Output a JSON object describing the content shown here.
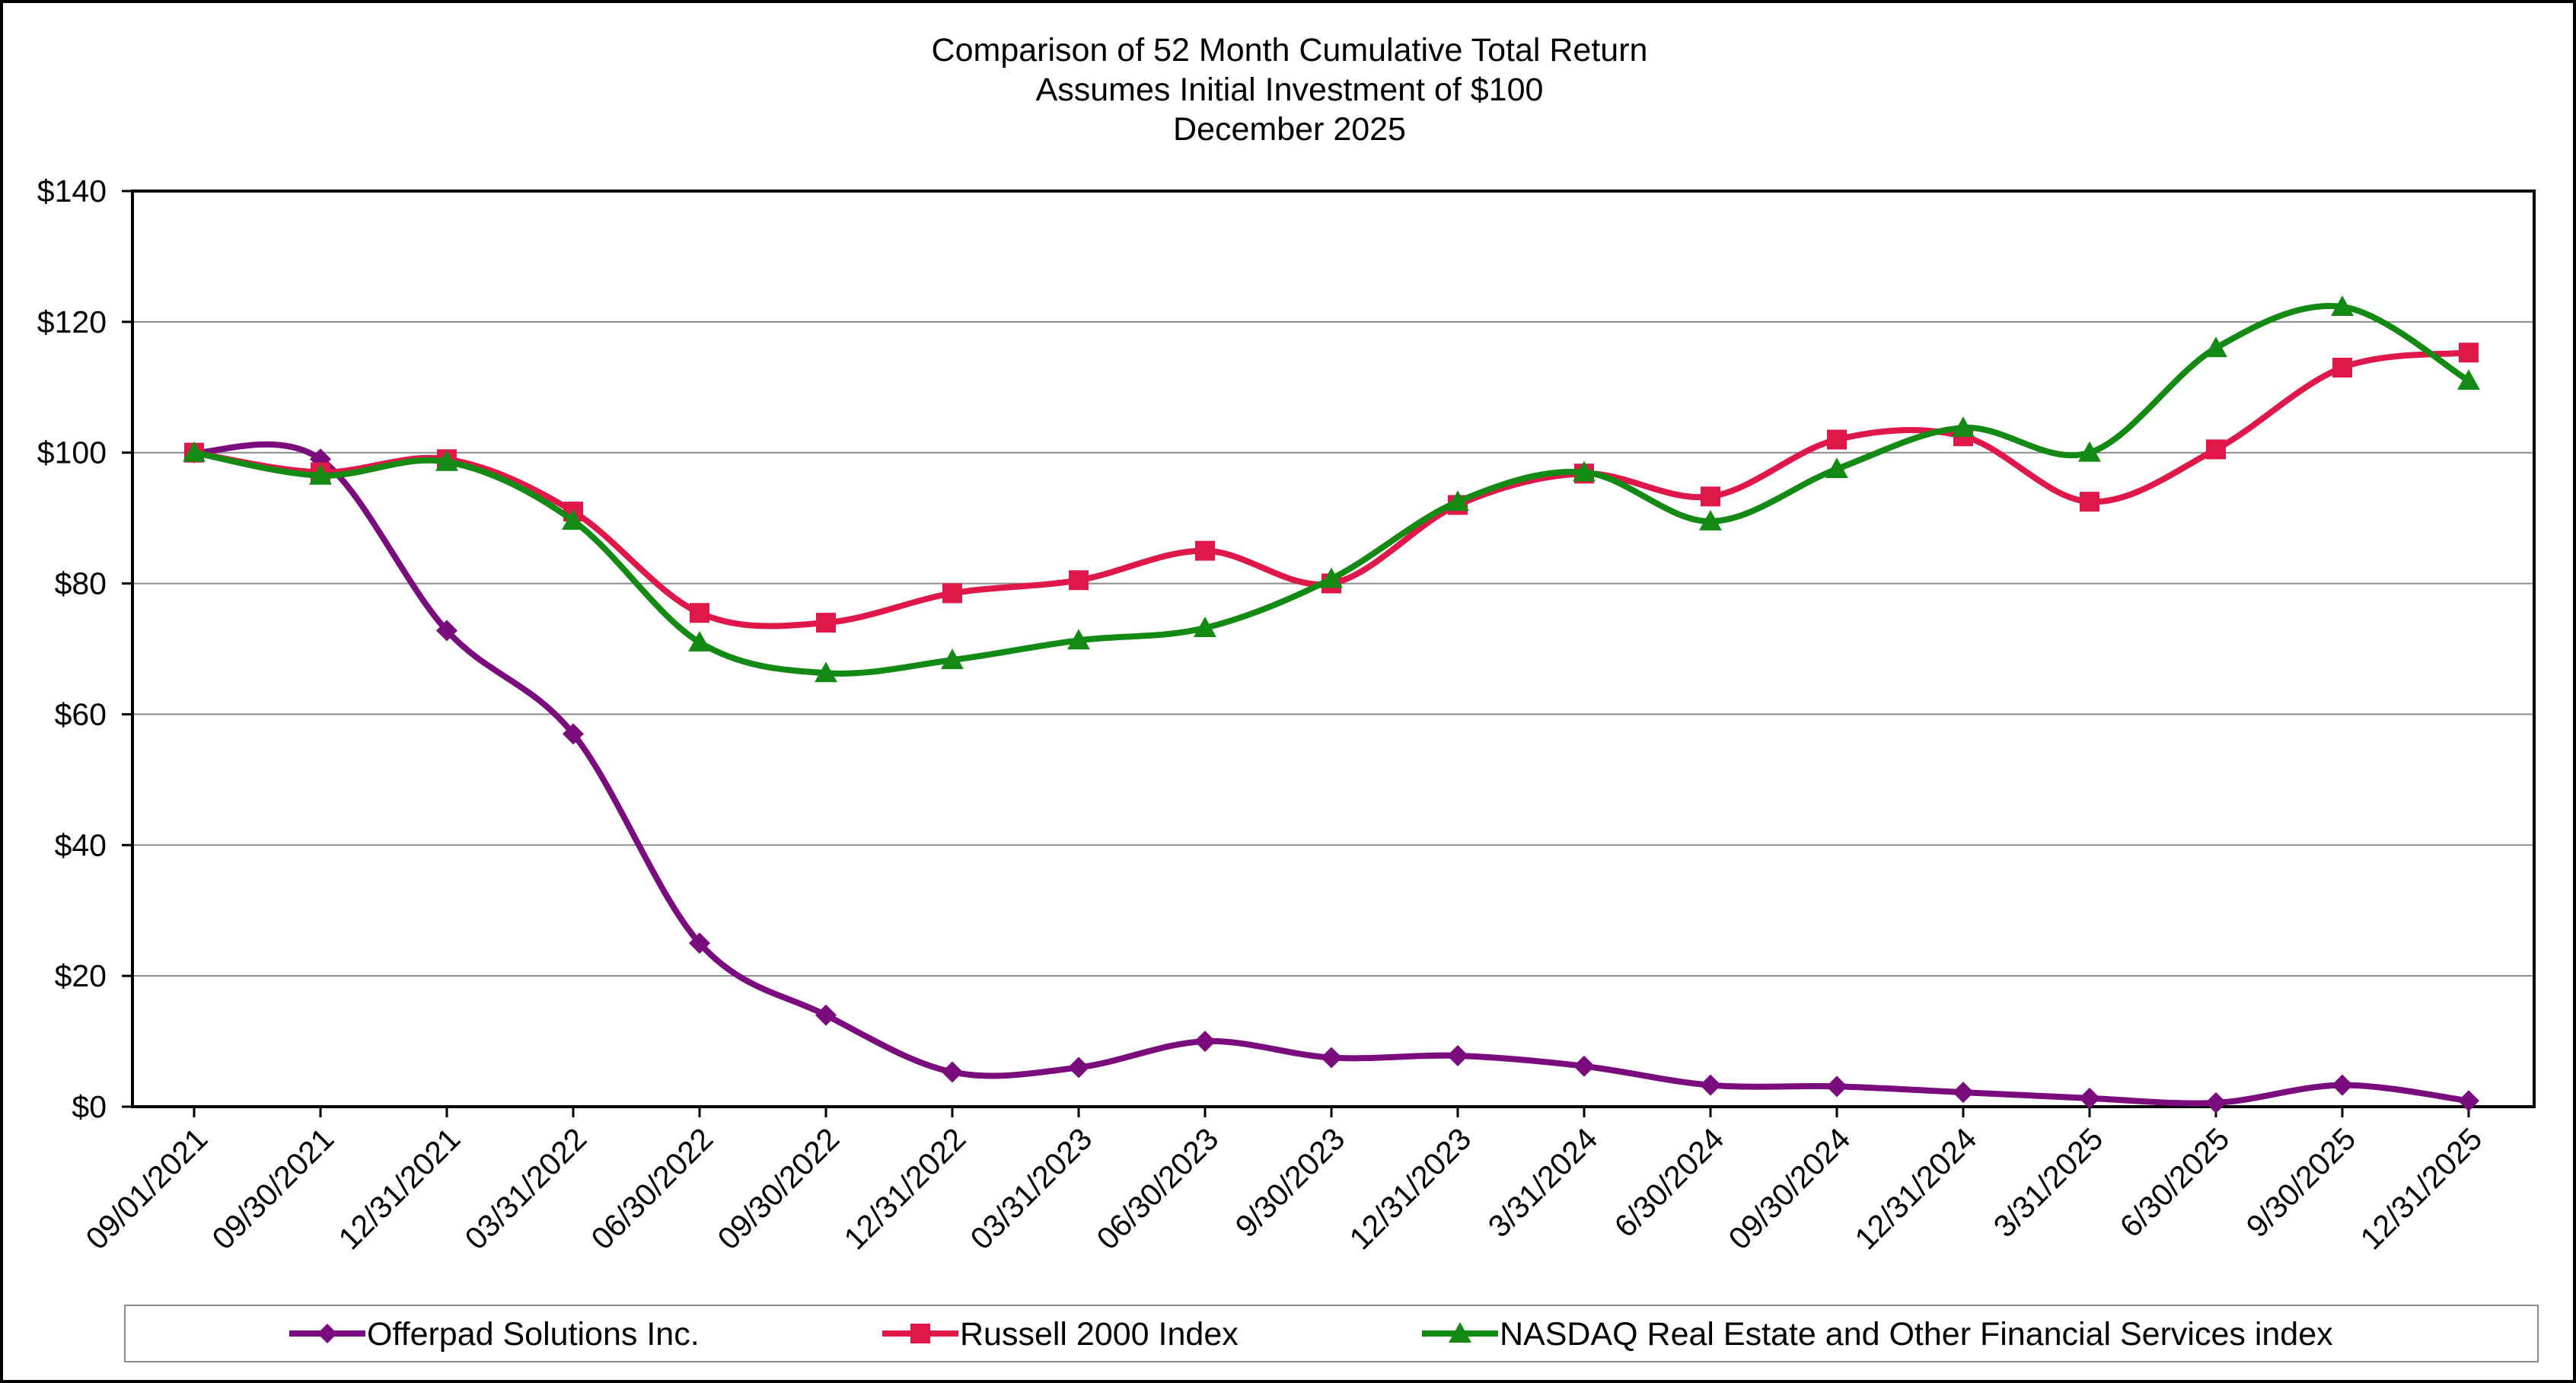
{
  "chart_data": {
    "type": "line",
    "title": "Comparison of 52 Month Cumulative Total Return",
    "subtitle": [
      "Assumes Initial Investment of $100",
      "December 2025"
    ],
    "xlabel": "",
    "ylabel": "",
    "ylim": [
      0,
      140
    ],
    "y_ticks": [
      0,
      20,
      40,
      60,
      80,
      100,
      120,
      140
    ],
    "y_tick_labels": [
      "$0",
      "$20",
      "$40",
      "$60",
      "$80",
      "$100",
      "$120",
      "$140"
    ],
    "grid": true,
    "legend_position": "bottom",
    "categories": [
      "09/01/2021",
      "09/30/2021",
      "12/31/2021",
      "03/31/2022",
      "06/30/2022",
      "09/30/2022",
      "12/31/2022",
      "03/31/2023",
      "06/30/2023",
      "9/30/2023",
      "12/31/2023",
      "3/31/2024",
      "6/30/2024",
      "09/30/2024",
      "12/31/2024",
      "3/31/2025",
      "6/30/2025",
      "9/30/2025",
      "12/31/2025"
    ],
    "series": [
      {
        "name": "Offerpad Solutions Inc.",
        "color": "#7B0C7E",
        "marker": "diamond",
        "values": [
          100,
          99,
          72.8,
          57,
          25,
          14,
          5.3,
          6,
          10,
          7.5,
          7.8,
          6.2,
          3.3,
          3.1,
          2.2,
          1.3,
          0.6,
          3.3,
          0.9
        ]
      },
      {
        "name": "Russell 2000 Index",
        "color": "#E0184A",
        "marker": "square",
        "values": [
          100,
          97,
          99,
          91,
          75.5,
          74,
          78.5,
          80.5,
          85,
          80,
          92,
          96.8,
          93.3,
          102,
          102.5,
          92.5,
          100.5,
          113,
          115.3
        ]
      },
      {
        "name": "NASDAQ Real Estate and Other Financial Services index",
        "color": "#138A13",
        "marker": "triangle",
        "values": [
          100,
          96.5,
          98.6,
          89.6,
          71,
          66.3,
          68.3,
          71.3,
          73.2,
          80.7,
          92.5,
          97,
          89.5,
          97.5,
          103.8,
          100,
          116,
          122.3,
          111
        ]
      }
    ]
  }
}
